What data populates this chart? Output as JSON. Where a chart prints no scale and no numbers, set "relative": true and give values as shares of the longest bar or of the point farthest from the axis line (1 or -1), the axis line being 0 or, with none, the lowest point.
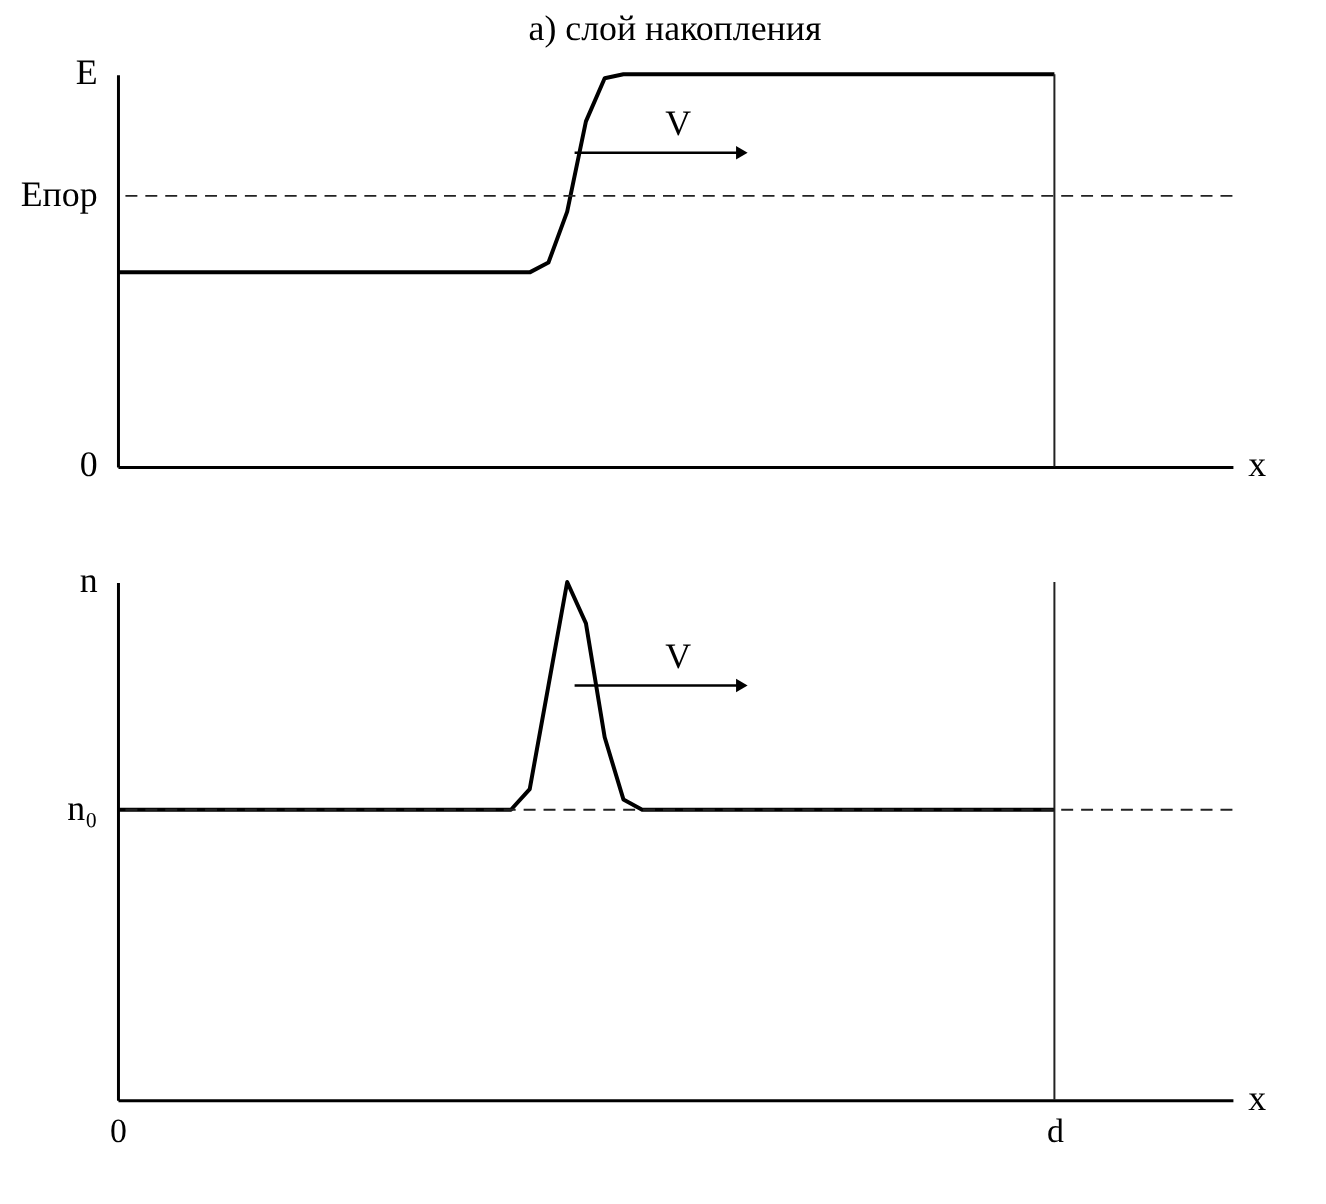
{
  "chart_data": [
    {
      "type": "line",
      "title": "а) слой накопления",
      "relative": true,
      "categories": [
        null,
        null,
        null,
        null,
        null,
        null,
        null,
        null,
        null,
        null,
        null,
        null,
        null,
        null,
        null,
        null,
        null,
        null,
        null,
        null,
        null,
        null,
        null,
        null,
        null,
        null,
        null,
        null,
        null,
        null,
        null,
        null,
        null,
        null,
        null,
        null,
        null,
        null,
        null,
        null,
        null,
        null,
        null,
        null,
        null,
        null,
        null,
        null,
        null,
        null,
        null
      ],
      "series": [
        {
          "color": "#000000",
          "values": [
            0.495,
            0.495,
            0.495,
            0.495,
            0.495,
            0.495,
            0.495,
            0.495,
            0.495,
            0.495,
            0.495,
            0.495,
            0.495,
            0.495,
            0.495,
            0.495,
            0.495,
            0.495,
            0.495,
            0.495,
            0.495,
            0.495,
            0.495,
            0.52,
            0.65,
            0.88,
            0.99,
            1,
            1,
            1,
            1,
            1,
            1,
            1,
            1,
            1,
            1,
            1,
            1,
            1,
            1,
            1,
            1,
            1,
            1,
            1,
            1,
            1,
            1,
            1,
            1
          ]
        }
      ],
      "xlabel": "x",
      "tick_labels": false,
      "ref_lines": [
        {
          "axis": "y",
          "value": 0.69,
          "label": "Eпор",
          "line_style": "dashed",
          "color": "#222222"
        }
      ],
      "annotations": [
        "E",
        "0",
        "V"
      ]
    },
    {
      "type": "line",
      "relative": true,
      "categories": [
        "0",
        null,
        null,
        null,
        null,
        null,
        null,
        null,
        null,
        null,
        null,
        null,
        null,
        null,
        null,
        null,
        null,
        null,
        null,
        null,
        null,
        null,
        null,
        null,
        null,
        null,
        null,
        null,
        null,
        null,
        null,
        null,
        null,
        null,
        null,
        null,
        null,
        null,
        null,
        null,
        null,
        null,
        null,
        null,
        null,
        null,
        null,
        null,
        null,
        null,
        "d"
      ],
      "series": [
        {
          "color": "#000000",
          "values": [
            0.56,
            0.56,
            0.56,
            0.56,
            0.56,
            0.56,
            0.56,
            0.56,
            0.56,
            0.56,
            0.56,
            0.56,
            0.56,
            0.56,
            0.56,
            0.56,
            0.56,
            0.56,
            0.56,
            0.56,
            0.56,
            0.56,
            0.6,
            0.8,
            1,
            0.92,
            0.7,
            0.58,
            0.56,
            0.56,
            0.56,
            0.56,
            0.56,
            0.56,
            0.56,
            0.56,
            0.56,
            0.56,
            0.56,
            0.56,
            0.56,
            0.56,
            0.56,
            0.56,
            0.56,
            0.56,
            0.56,
            0.56,
            0.56,
            0.56,
            0.56
          ]
        }
      ],
      "xlabel": "x",
      "tick_labels": "x",
      "ref_lines": [
        {
          "axis": "y",
          "value": 0.56,
          "label": "n₀",
          "line_style": "dashed",
          "color": "#222222"
        }
      ],
      "annotations": [
        "n",
        "V"
      ]
    }
  ]
}
